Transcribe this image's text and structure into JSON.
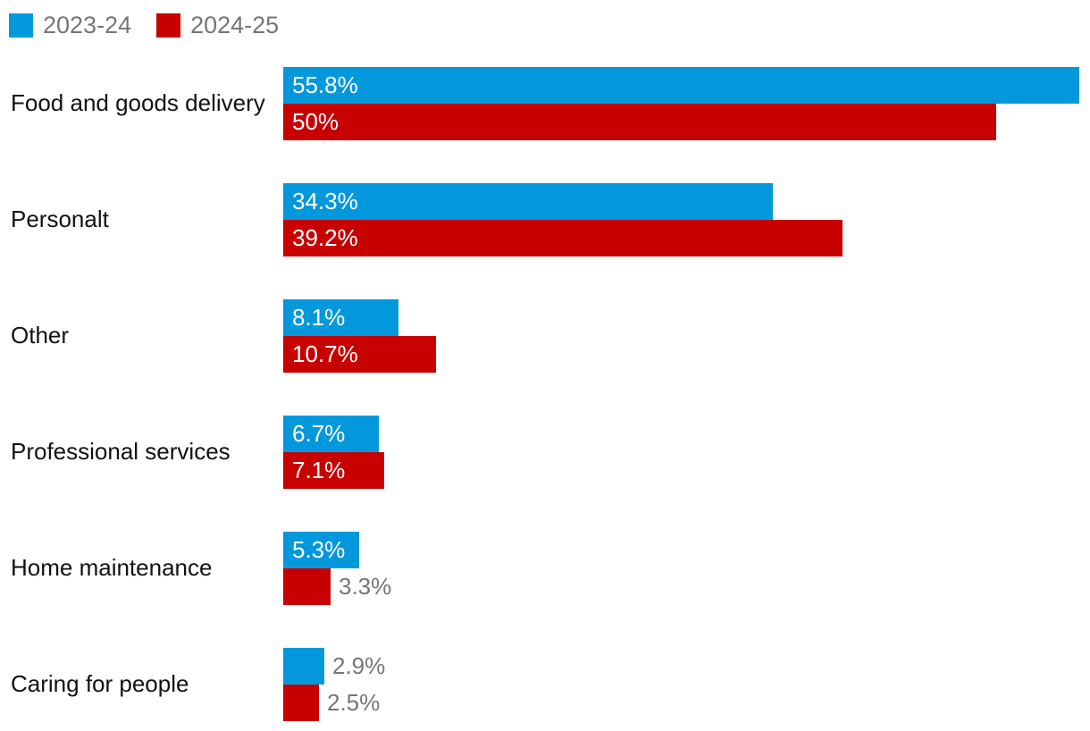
{
  "colors": {
    "background": "#ffffff",
    "category_text": "#121212",
    "legend_text": "#767676",
    "value_label_inside": "#ffffff",
    "value_label_outside": "#767676"
  },
  "chart_data": {
    "type": "bar",
    "orientation": "horizontal",
    "title": "",
    "xlabel": "",
    "ylabel": "",
    "value_suffix": "%",
    "xlim": [
      0,
      56.5
    ],
    "grid": false,
    "legend_position": "top-left",
    "categories": [
      "Food and goods delivery",
      "Personalt",
      "Other",
      "Professional services",
      "Home maintenance",
      "Caring for people"
    ],
    "series": [
      {
        "name": "2023-24",
        "color": "#0398db",
        "values": [
          55.8,
          34.3,
          8.1,
          6.7,
          5.3,
          2.9
        ],
        "labels": [
          "55.8%",
          "34.3%",
          "8.1%",
          "6.7%",
          "5.3%",
          "2.9%"
        ],
        "label_inside": [
          true,
          true,
          true,
          true,
          true,
          false
        ]
      },
      {
        "name": "2024-25",
        "color": "#c70000",
        "values": [
          50,
          39.2,
          10.7,
          7.1,
          3.3,
          2.5
        ],
        "labels": [
          "50%",
          "39.2%",
          "10.7%",
          "7.1%",
          "3.3%",
          "2.5%"
        ],
        "label_inside": [
          true,
          true,
          true,
          true,
          false,
          false
        ]
      }
    ]
  }
}
